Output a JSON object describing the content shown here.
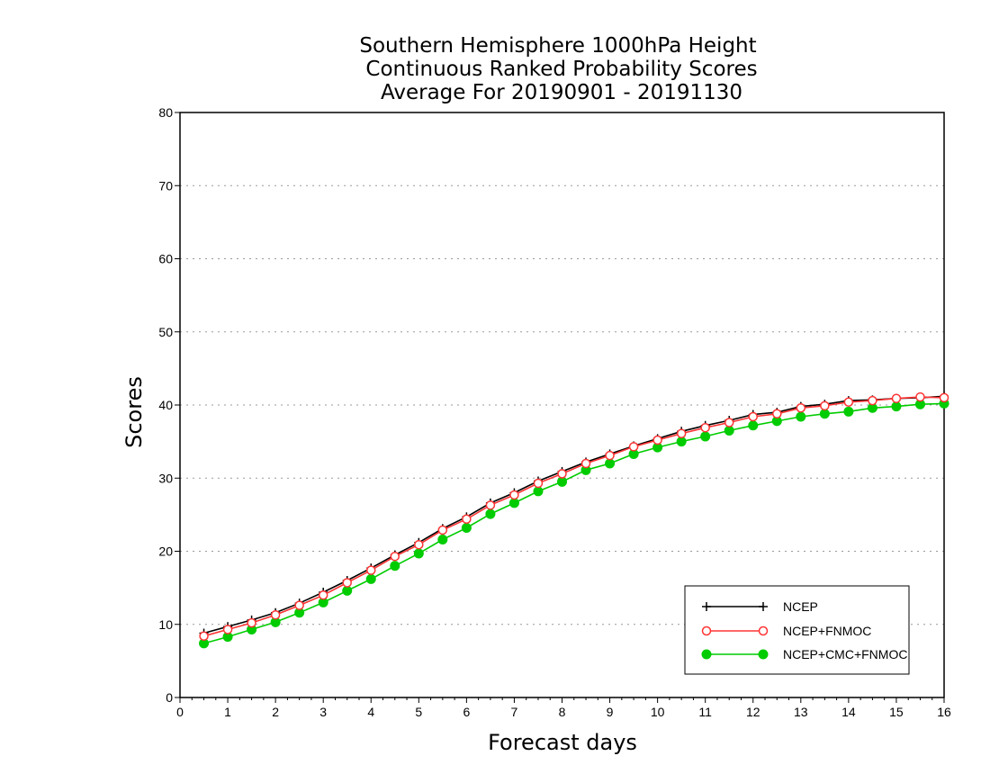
{
  "chart_data": {
    "type": "line",
    "title_lines": [
      "Southern Hemisphere 1000hPa Height",
      "Continuous Ranked Probability Scores",
      "Average For 20190901 - 20191130"
    ],
    "xlabel": "Forecast days",
    "ylabel": "Scores",
    "xlim": [
      0,
      16
    ],
    "ylim": [
      0,
      80
    ],
    "x_ticks": [
      0,
      1,
      2,
      3,
      4,
      5,
      6,
      7,
      8,
      9,
      10,
      11,
      12,
      13,
      14,
      15,
      16
    ],
    "y_ticks": [
      0,
      10,
      20,
      30,
      40,
      50,
      60,
      70,
      80
    ],
    "grid": "horizontal dotted",
    "legend_position": "bottom-right",
    "x": [
      0.5,
      1,
      1.5,
      2,
      2.5,
      3,
      3.5,
      4,
      4.5,
      5,
      5.5,
      6,
      6.5,
      7,
      7.5,
      8,
      8.5,
      9,
      9.5,
      10,
      10.5,
      11,
      11.5,
      12,
      12.5,
      13,
      13.5,
      14,
      14.5,
      15,
      15.5,
      16
    ],
    "series": [
      {
        "name": "NCEP",
        "color": "#000000",
        "marker": "plus",
        "values": [
          8.8,
          9.7,
          10.6,
          11.6,
          12.9,
          14.4,
          16.0,
          17.7,
          19.5,
          21.2,
          23.1,
          24.7,
          26.6,
          28.0,
          29.6,
          30.9,
          32.2,
          33.3,
          34.4,
          35.4,
          36.4,
          37.2,
          37.9,
          38.7,
          39.0,
          39.8,
          40.1,
          40.6,
          40.7,
          40.9,
          41.0,
          41.2
        ]
      },
      {
        "name": "NCEP+FNMOC",
        "color": "#ff3333",
        "marker": "open-circle",
        "values": [
          8.4,
          9.3,
          10.2,
          11.3,
          12.6,
          14.0,
          15.7,
          17.4,
          19.3,
          20.9,
          22.9,
          24.4,
          26.3,
          27.7,
          29.3,
          30.6,
          32.0,
          33.1,
          34.3,
          35.2,
          36.1,
          36.9,
          37.6,
          38.4,
          38.8,
          39.6,
          39.9,
          40.4,
          40.6,
          40.9,
          41.1,
          41.0
        ]
      },
      {
        "name": "NCEP+CMC+FNMOC",
        "color": "#00cc00",
        "marker": "filled-circle",
        "values": [
          7.4,
          8.3,
          9.3,
          10.3,
          11.6,
          13.0,
          14.6,
          16.2,
          18.0,
          19.7,
          21.6,
          23.2,
          25.1,
          26.6,
          28.2,
          29.5,
          31.1,
          32.0,
          33.3,
          34.2,
          35.0,
          35.7,
          36.5,
          37.2,
          37.8,
          38.4,
          38.8,
          39.1,
          39.6,
          39.8,
          40.1,
          40.2
        ]
      }
    ]
  }
}
